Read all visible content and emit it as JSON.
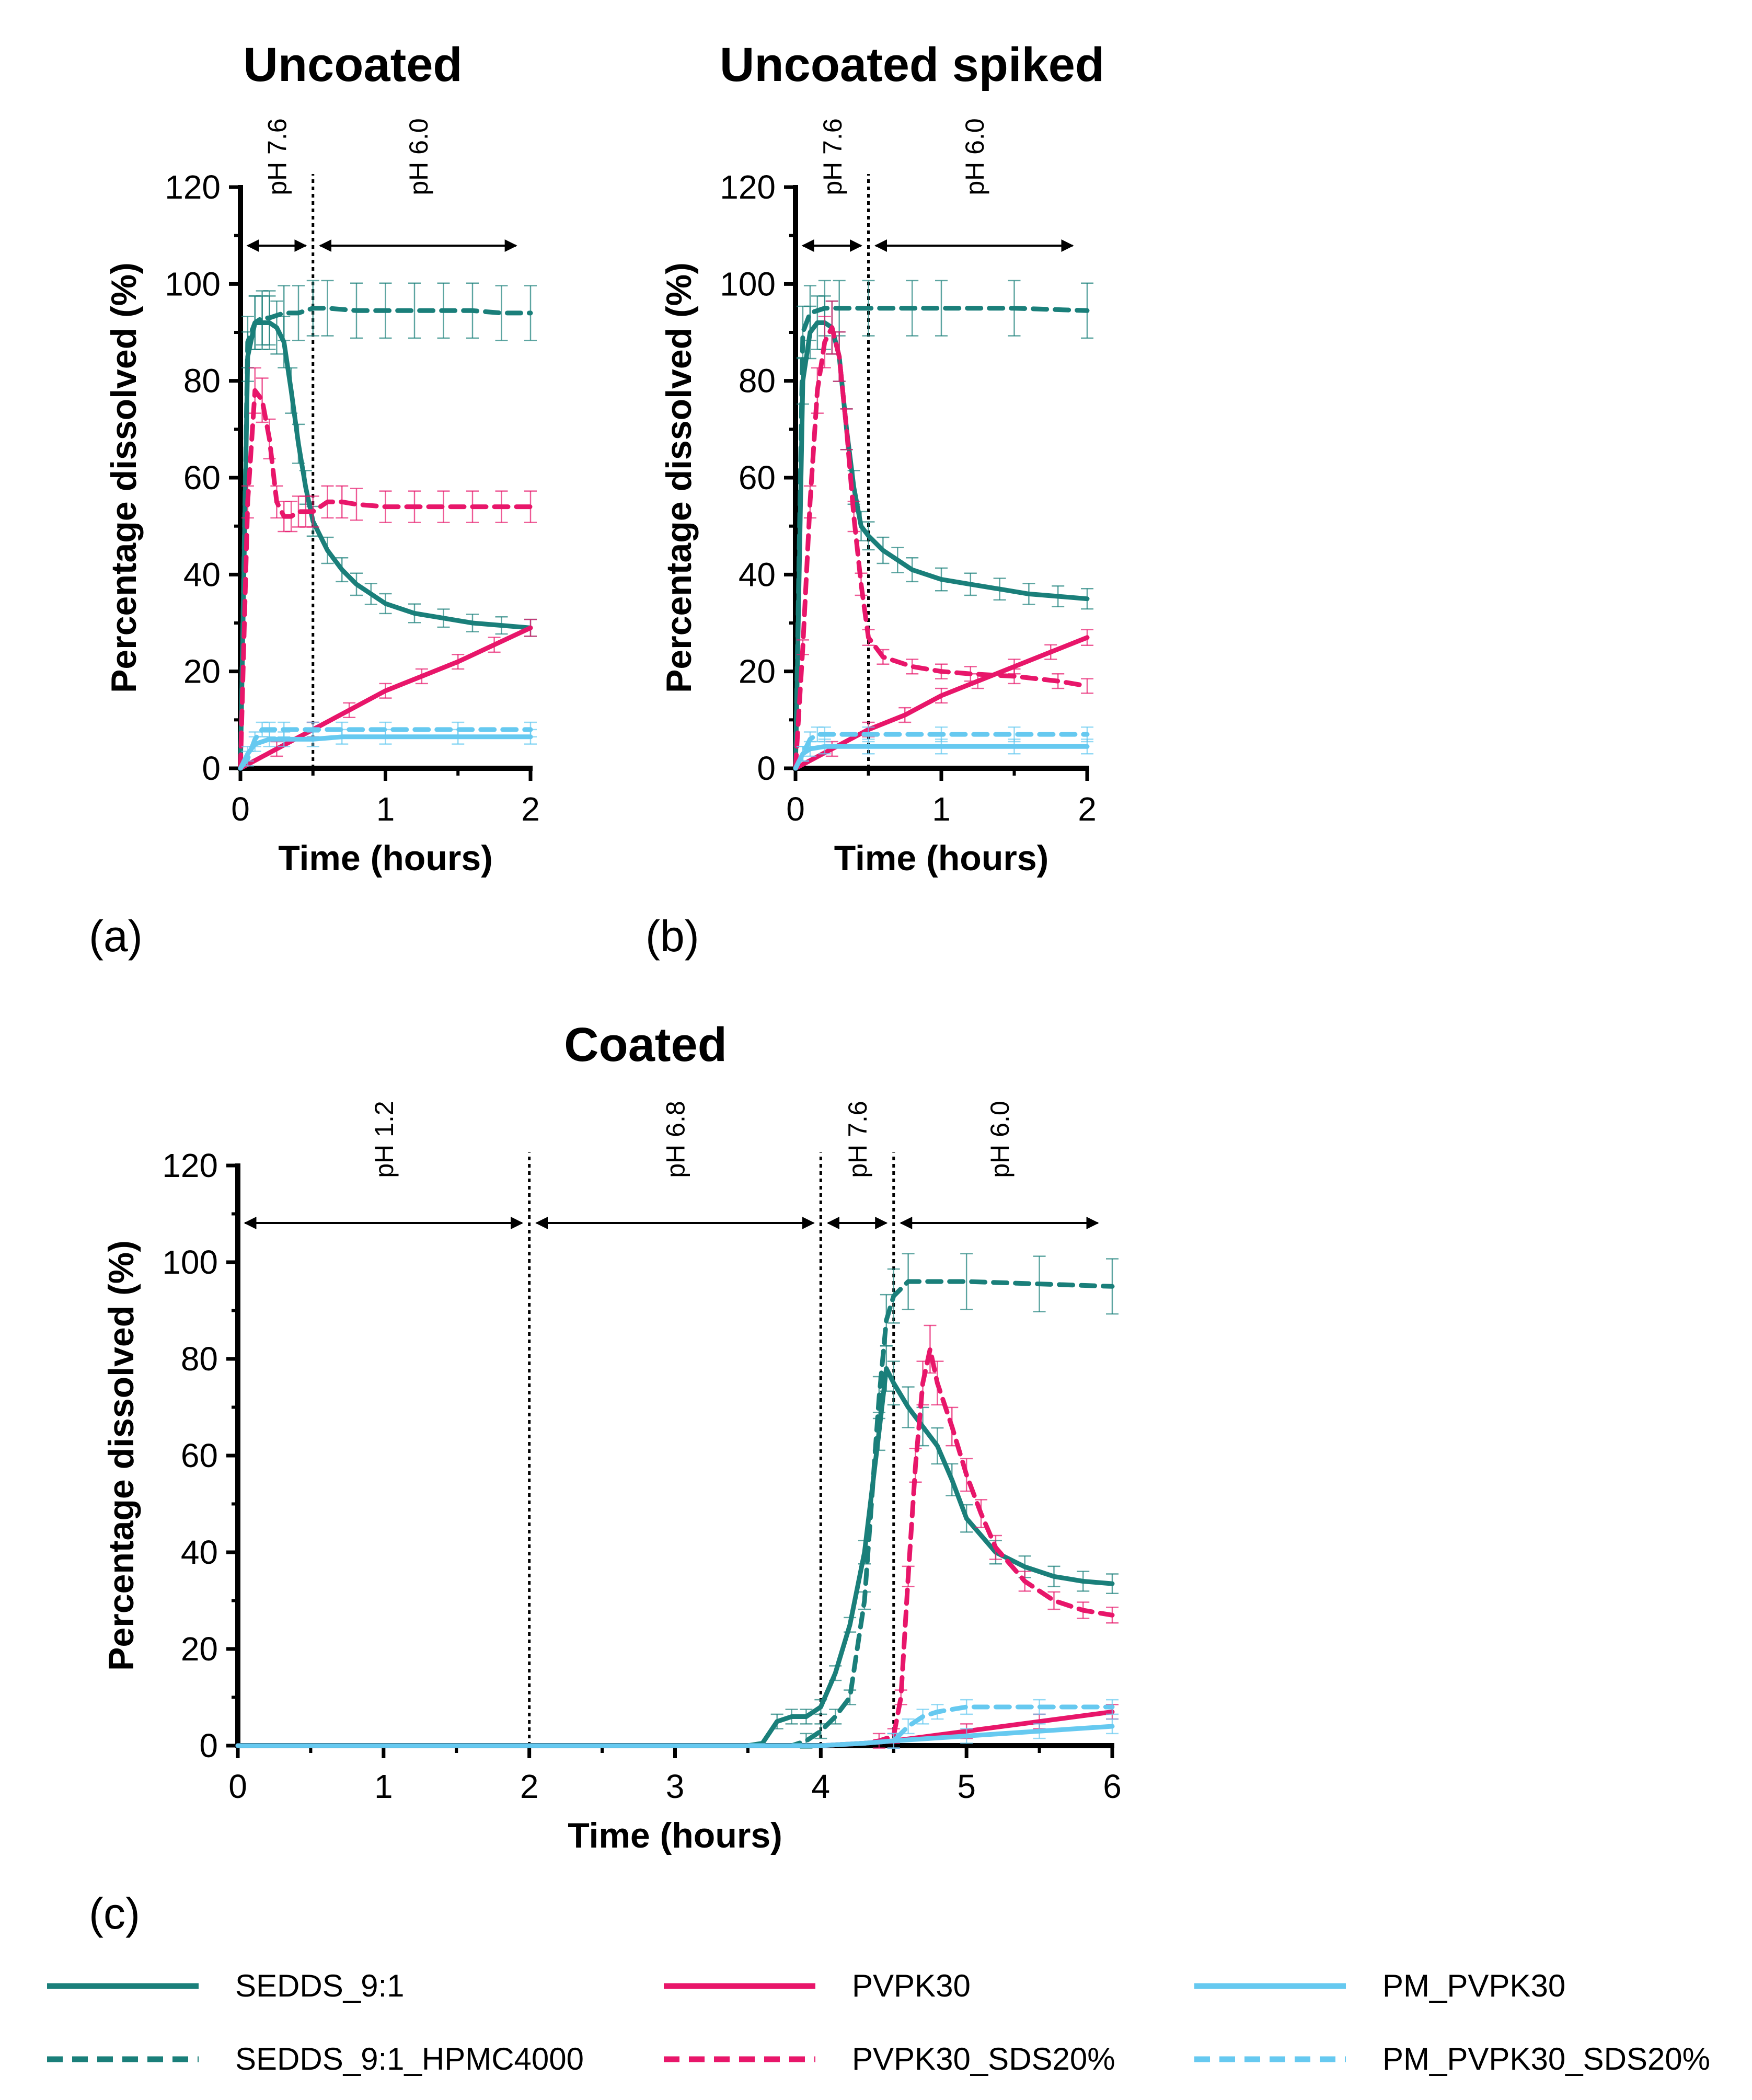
{
  "colors": {
    "teal": "#1A7F7A",
    "pink": "#E8166A",
    "lightblue": "#66C9F0"
  },
  "legend": [
    {
      "name": "SEDDS_9:1",
      "color": "#1A7F7A",
      "dash": false
    },
    {
      "name": "SEDDS_9:1_HPMC4000",
      "color": "#1A7F7A",
      "dash": true
    },
    {
      "name": "PVPK30",
      "color": "#E8166A",
      "dash": false
    },
    {
      "name": "PVPK30_SDS20%",
      "color": "#E8166A",
      "dash": true
    },
    {
      "name": "PM_PVPK30",
      "color": "#66C9F0",
      "dash": false
    },
    {
      "name": "PM_PVPK30_SDS20%",
      "color": "#66C9F0",
      "dash": true
    }
  ],
  "chart_data": [
    {
      "type": "line",
      "panel": "(a)",
      "title": "Uncoated",
      "xlabel": "Time (hours)",
      "ylabel": "Percentage dissolved (%)",
      "xlim": [
        0,
        2
      ],
      "ylim": [
        0,
        120
      ],
      "xticks": [
        0,
        1,
        2
      ],
      "yticks": [
        0,
        20,
        40,
        60,
        80,
        100,
        120
      ],
      "vlines": [
        0.5
      ],
      "phases": [
        {
          "label": "pH 7.6",
          "from": 0.05,
          "to": 0.45
        },
        {
          "label": "pH 6.0",
          "from": 0.55,
          "to": 1.9
        }
      ],
      "series": [
        {
          "name": "SEDDS_9:1",
          "x": [
            0,
            0.05,
            0.1,
            0.15,
            0.2,
            0.25,
            0.3,
            0.35,
            0.4,
            0.45,
            0.5,
            0.6,
            0.7,
            0.8,
            0.9,
            1.0,
            1.2,
            1.4,
            1.6,
            1.8,
            2.0
          ],
          "y": [
            0,
            85,
            92,
            92,
            92,
            91,
            88,
            78,
            67,
            58,
            51,
            45,
            41,
            38,
            36,
            34,
            32,
            31,
            30,
            29.5,
            29
          ]
        },
        {
          "name": "SEDDS_9:1_HPMC4000",
          "x": [
            0,
            0.05,
            0.1,
            0.15,
            0.2,
            0.3,
            0.4,
            0.5,
            0.6,
            0.8,
            1.0,
            1.2,
            1.4,
            1.6,
            1.8,
            2.0
          ],
          "y": [
            0,
            88,
            92,
            93,
            93,
            94,
            94,
            95,
            95,
            94.5,
            94.5,
            94.5,
            94.5,
            94.5,
            94,
            94
          ]
        },
        {
          "name": "PVPK30",
          "x": [
            0,
            0.25,
            0.5,
            0.75,
            1.0,
            1.25,
            1.5,
            1.75,
            2.0
          ],
          "y": [
            0,
            4,
            8,
            12,
            16,
            19,
            22,
            25.5,
            29
          ]
        },
        {
          "name": "PVPK30_SDS20%",
          "x": [
            0,
            0.05,
            0.1,
            0.15,
            0.2,
            0.25,
            0.3,
            0.35,
            0.4,
            0.45,
            0.5,
            0.6,
            0.7,
            0.8,
            1.0,
            1.2,
            1.4,
            1.6,
            1.8,
            2.0
          ],
          "y": [
            0,
            55,
            78,
            76,
            68,
            55,
            52,
            52,
            53,
            53,
            53,
            55,
            55,
            54.5,
            54,
            54,
            54,
            54,
            54,
            54
          ]
        },
        {
          "name": "PM_PVPK30",
          "x": [
            0,
            0.05,
            0.1,
            0.2,
            0.3,
            0.5,
            0.7,
            1.0,
            1.5,
            2.0
          ],
          "y": [
            0,
            3,
            5,
            6,
            6,
            6,
            6.5,
            6.5,
            6.5,
            6.5
          ]
        },
        {
          "name": "PM_PVPK30_SDS20%",
          "x": [
            0,
            0.05,
            0.1,
            0.15,
            0.2,
            0.3,
            0.5,
            0.7,
            1.0,
            1.5,
            2.0
          ],
          "y": [
            0,
            2,
            6,
            8,
            8,
            8,
            8,
            8,
            8,
            8,
            8
          ]
        }
      ]
    },
    {
      "type": "line",
      "panel": "(b)",
      "title": "Uncoated spiked",
      "xlabel": "Time (hours)",
      "ylabel": "Percentage dissolved (%)",
      "xlim": [
        0,
        2
      ],
      "ylim": [
        0,
        120
      ],
      "xticks": [
        0,
        1,
        2
      ],
      "yticks": [
        0,
        20,
        40,
        60,
        80,
        100,
        120
      ],
      "vlines": [
        0.5
      ],
      "phases": [
        {
          "label": "pH 7.6",
          "from": 0.05,
          "to": 0.45
        },
        {
          "label": "pH 6.0",
          "from": 0.55,
          "to": 1.9
        }
      ],
      "series": [
        {
          "name": "SEDDS_9:1",
          "x": [
            0,
            0.05,
            0.1,
            0.15,
            0.2,
            0.25,
            0.3,
            0.35,
            0.4,
            0.45,
            0.5,
            0.6,
            0.7,
            0.8,
            1.0,
            1.2,
            1.4,
            1.6,
            1.8,
            2.0
          ],
          "y": [
            0,
            80,
            90,
            92,
            92,
            91,
            85,
            70,
            58,
            50,
            48,
            45,
            43,
            41,
            39,
            38,
            37,
            36,
            35.5,
            35
          ]
        },
        {
          "name": "SEDDS_9:1_HPMC4000",
          "x": [
            0,
            0.05,
            0.1,
            0.2,
            0.3,
            0.5,
            0.8,
            1.0,
            1.5,
            2.0
          ],
          "y": [
            0,
            90,
            94,
            95,
            95,
            95,
            95,
            95,
            95,
            94.5
          ]
        },
        {
          "name": "PVPK30",
          "x": [
            0,
            0.25,
            0.5,
            0.75,
            1.0,
            1.25,
            1.5,
            1.75,
            2.0
          ],
          "y": [
            0,
            4,
            8,
            11,
            15,
            18,
            21,
            24,
            27
          ]
        },
        {
          "name": "PVPK30_SDS20%",
          "x": [
            0,
            0.05,
            0.1,
            0.15,
            0.2,
            0.25,
            0.3,
            0.35,
            0.4,
            0.45,
            0.5,
            0.6,
            0.8,
            1.0,
            1.2,
            1.5,
            1.8,
            2.0
          ],
          "y": [
            0,
            25,
            55,
            78,
            88,
            91,
            85,
            70,
            52,
            38,
            27,
            23,
            21,
            20,
            19.5,
            19,
            18,
            17
          ]
        },
        {
          "name": "PM_PVPK30",
          "x": [
            0,
            0.05,
            0.1,
            0.2,
            0.5,
            1.0,
            1.5,
            2.0
          ],
          "y": [
            0,
            3,
            4,
            4.5,
            4.5,
            4.5,
            4.5,
            4.5
          ]
        },
        {
          "name": "PM_PVPK30_SDS20%",
          "x": [
            0,
            0.05,
            0.1,
            0.15,
            0.2,
            0.5,
            1.0,
            1.5,
            2.0
          ],
          "y": [
            0,
            3,
            6,
            7,
            7,
            7,
            7,
            7,
            7
          ]
        }
      ]
    },
    {
      "type": "line",
      "panel": "(c)",
      "title": "Coated",
      "xlabel": "Time (hours)",
      "ylabel": "Percentage dissolved (%)",
      "xlim": [
        0,
        6
      ],
      "ylim": [
        0,
        120
      ],
      "xticks": [
        0,
        1,
        2,
        3,
        4,
        5,
        6
      ],
      "yticks": [
        0,
        20,
        40,
        60,
        80,
        100,
        120
      ],
      "vlines": [
        2,
        4,
        4.5
      ],
      "phases": [
        {
          "label": "pH 1.2",
          "from": 0.05,
          "to": 1.95
        },
        {
          "label": "pH 6.8",
          "from": 2.05,
          "to": 3.95
        },
        {
          "label": "pH 7.6",
          "from": 4.05,
          "to": 4.45
        },
        {
          "label": "pH 6.0",
          "from": 4.55,
          "to": 5.9
        }
      ],
      "series": [
        {
          "name": "SEDDS_9:1",
          "x": [
            0,
            1,
            2,
            3,
            3.5,
            3.6,
            3.7,
            3.8,
            3.9,
            4.0,
            4.1,
            4.2,
            4.3,
            4.4,
            4.45,
            4.5,
            4.6,
            4.7,
            4.8,
            4.9,
            5.0,
            5.2,
            5.4,
            5.6,
            5.8,
            6.0
          ],
          "y": [
            0,
            0,
            0,
            0,
            0,
            0.5,
            5,
            6,
            6,
            8,
            15,
            25,
            40,
            65,
            78,
            75,
            70,
            66,
            62,
            55,
            47,
            40,
            37,
            35,
            34,
            33.5
          ]
        },
        {
          "name": "SEDDS_9:1_HPMC4000",
          "x": [
            0,
            1,
            2,
            3,
            3.8,
            3.9,
            4.0,
            4.1,
            4.2,
            4.3,
            4.4,
            4.45,
            4.5,
            4.6,
            5.0,
            5.5,
            6.0
          ],
          "y": [
            0,
            0,
            0,
            0,
            0,
            1,
            3,
            6,
            10,
            30,
            72,
            88,
            93,
            96,
            96,
            95.5,
            95
          ]
        },
        {
          "name": "PVPK30",
          "x": [
            0,
            1,
            2,
            3,
            4,
            4.3,
            4.5,
            5.0,
            5.5,
            6.0
          ],
          "y": [
            0,
            0,
            0,
            0,
            0,
            0.5,
            1,
            3,
            5,
            7
          ]
        },
        {
          "name": "PVPK30_SDS20%",
          "x": [
            0,
            1,
            2,
            3,
            4,
            4.3,
            4.4,
            4.5,
            4.55,
            4.6,
            4.65,
            4.7,
            4.75,
            4.8,
            4.9,
            5.0,
            5.1,
            5.2,
            5.4,
            5.6,
            5.8,
            6.0
          ],
          "y": [
            0,
            0,
            0,
            0,
            0,
            0.5,
            1,
            2,
            10,
            35,
            58,
            75,
            82,
            75,
            66,
            56,
            48,
            41,
            34,
            30,
            28,
            27
          ]
        },
        {
          "name": "PM_PVPK30",
          "x": [
            0,
            1,
            2,
            3,
            4,
            4.3,
            4.5,
            5.0,
            5.5,
            6.0
          ],
          "y": [
            0,
            0,
            0,
            0,
            0,
            0.5,
            1,
            2,
            3,
            4
          ]
        },
        {
          "name": "PM_PVPK30_SDS20%",
          "x": [
            0,
            1,
            2,
            3,
            4,
            4.3,
            4.5,
            4.6,
            4.7,
            4.8,
            5.0,
            5.5,
            6.0
          ],
          "y": [
            0,
            0,
            0,
            0,
            0,
            0.5,
            1,
            4,
            6,
            7,
            8,
            8,
            8
          ]
        }
      ]
    }
  ]
}
